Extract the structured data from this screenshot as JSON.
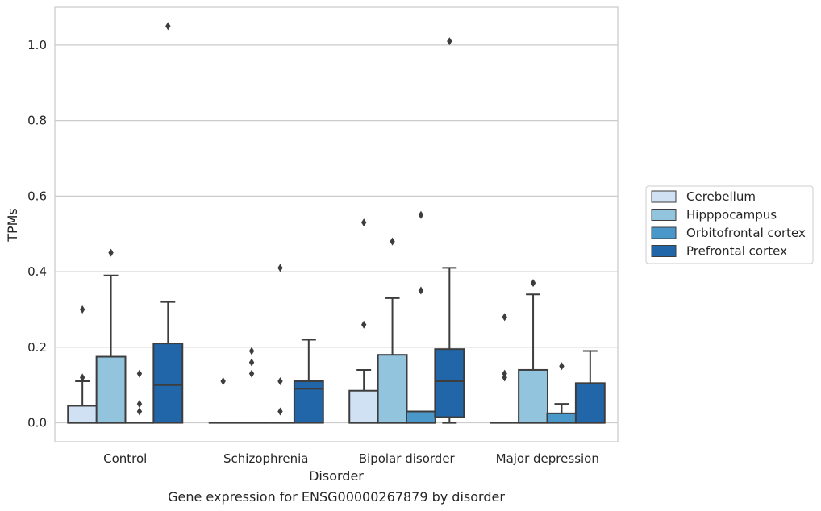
{
  "chart_data": {
    "type": "box",
    "caption": "Gene expression for ENSG00000267879 by disorder",
    "xlabel": "Disorder",
    "ylabel": "TPMs",
    "ylim": [
      -0.05,
      1.1
    ],
    "yticks": [
      "0.0",
      "0.2",
      "0.4",
      "0.6",
      "0.8",
      "1.0"
    ],
    "grid": "horizontal",
    "legend_position": "right",
    "categories": [
      "Control",
      "Schizophrenia",
      "Bipolar disorder",
      "Major depression"
    ],
    "series": [
      {
        "name": "Cerebellum",
        "color": "#cfe1f2",
        "boxes": [
          {
            "whislo": 0.0,
            "q1": 0.0,
            "med": 0.0,
            "q3": 0.045,
            "whishi": 0.11,
            "fliers": [
              0.12,
              0.3
            ]
          },
          {
            "whislo": 0.0,
            "q1": 0.0,
            "med": 0.0,
            "q3": 0.0,
            "whishi": 0.0,
            "fliers": [
              0.11
            ]
          },
          {
            "whislo": 0.0,
            "q1": 0.0,
            "med": 0.0,
            "q3": 0.085,
            "whishi": 0.14,
            "fliers": [
              0.26,
              0.53
            ]
          },
          {
            "whislo": 0.0,
            "q1": 0.0,
            "med": 0.0,
            "q3": 0.0,
            "whishi": 0.0,
            "fliers": [
              0.12,
              0.13,
              0.28
            ]
          }
        ]
      },
      {
        "name": "Hipppocampus",
        "color": "#93c4de",
        "boxes": [
          {
            "whislo": 0.0,
            "q1": 0.0,
            "med": 0.0,
            "q3": 0.175,
            "whishi": 0.39,
            "fliers": [
              0.45
            ]
          },
          {
            "whislo": 0.0,
            "q1": 0.0,
            "med": 0.0,
            "q3": 0.0,
            "whishi": 0.0,
            "fliers": [
              0.13,
              0.16,
              0.19
            ]
          },
          {
            "whislo": 0.0,
            "q1": 0.0,
            "med": 0.0,
            "q3": 0.18,
            "whishi": 0.33,
            "fliers": [
              0.48
            ]
          },
          {
            "whislo": 0.0,
            "q1": 0.0,
            "med": 0.0,
            "q3": 0.14,
            "whishi": 0.34,
            "fliers": [
              0.37
            ]
          }
        ]
      },
      {
        "name": "Orbitofrontal cortex",
        "color": "#4a98c9",
        "boxes": [
          {
            "whislo": 0.0,
            "q1": 0.0,
            "med": 0.0,
            "q3": 0.0,
            "whishi": 0.0,
            "fliers": [
              0.03,
              0.05,
              0.13
            ]
          },
          {
            "whislo": 0.0,
            "q1": 0.0,
            "med": 0.0,
            "q3": 0.0,
            "whishi": 0.0,
            "fliers": [
              0.03,
              0.11,
              0.41
            ]
          },
          {
            "whislo": 0.0,
            "q1": 0.0,
            "med": 0.0,
            "q3": 0.03,
            "whishi": 0.03,
            "fliers": [
              0.35,
              0.55
            ]
          },
          {
            "whislo": 0.0,
            "q1": 0.0,
            "med": 0.0,
            "q3": 0.025,
            "whishi": 0.05,
            "fliers": [
              0.15
            ]
          }
        ]
      },
      {
        "name": "Prefrontal cortex",
        "color": "#2266aa",
        "boxes": [
          {
            "whislo": 0.0,
            "q1": 0.0,
            "med": 0.1,
            "q3": 0.21,
            "whishi": 0.32,
            "fliers": [
              1.05
            ]
          },
          {
            "whislo": 0.0,
            "q1": 0.0,
            "med": 0.09,
            "q3": 0.11,
            "whishi": 0.22,
            "fliers": []
          },
          {
            "whislo": 0.0,
            "q1": 0.015,
            "med": 0.11,
            "q3": 0.195,
            "whishi": 0.41,
            "fliers": [
              1.01
            ]
          },
          {
            "whislo": 0.0,
            "q1": 0.0,
            "med": 0.0,
            "q3": 0.105,
            "whishi": 0.19,
            "fliers": []
          }
        ]
      }
    ]
  }
}
